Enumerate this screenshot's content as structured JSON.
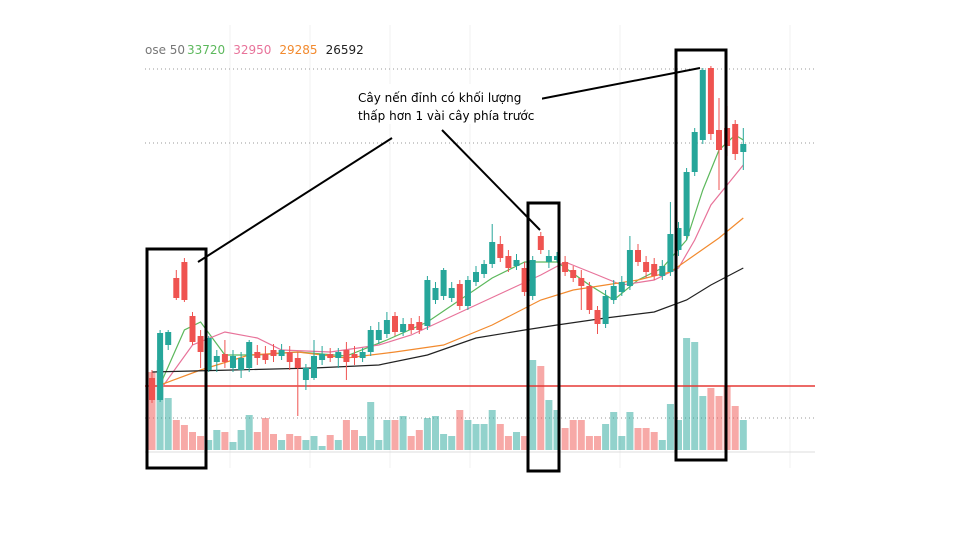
{
  "chart_data": {
    "type": "candlestick",
    "legend_label": "ose 50",
    "annotation": [
      "Cây nến đỉnh có khối lượng",
      "thấp hơn 1 vài cây phía trước"
    ],
    "up_color": "#26a69a",
    "down_color": "#ef5350",
    "ylim": [
      15000,
      40200
    ],
    "volume_lim": [
      0,
      120
    ],
    "open": [
      19320,
      18000,
      21300,
      25320,
      26280,
      23040,
      21840,
      19800,
      20280,
      20760,
      19920,
      19800,
      19920,
      20880,
      20760,
      21000,
      20640,
      20880,
      20520,
      19200,
      19320,
      20400,
      20760,
      20520,
      21000,
      20760,
      20520,
      20880,
      21600,
      21960,
      23040,
      22080,
      22560,
      22680,
      22440,
      24000,
      24240,
      24120,
      24960,
      23640,
      25080,
      25560,
      26160,
      27360,
      26640,
      26040,
      25920,
      24240,
      27840,
      26280,
      26400,
      26280,
      25800,
      25320,
      24840,
      23400,
      22560,
      24000,
      24480,
      24840,
      27000,
      26280,
      26160,
      25440,
      25680,
      27000,
      27840,
      31680,
      33600,
      37920,
      34200,
      34320,
      34560,
      32880
    ],
    "close": [
      18000,
      22020,
      22080,
      24120,
      24000,
      21480,
      20880,
      21720,
      20640,
      20280,
      20640,
      20520,
      21480,
      20520,
      20400,
      20640,
      21000,
      20280,
      19920,
      19920,
      20640,
      20760,
      20520,
      20880,
      20280,
      20520,
      20880,
      22200,
      22200,
      22800,
      22080,
      22560,
      22200,
      22200,
      25200,
      24720,
      25800,
      24720,
      23640,
      25200,
      25680,
      26160,
      27480,
      26520,
      25920,
      26400,
      24480,
      26400,
      27000,
      26640,
      26640,
      25680,
      25320,
      24840,
      23400,
      22560,
      24240,
      24840,
      25080,
      27000,
      26280,
      25680,
      25440,
      26040,
      27960,
      28320,
      31680,
      34080,
      37800,
      33960,
      33000,
      33240,
      32760,
      33360
    ],
    "high": [
      19800,
      22200,
      22200,
      25800,
      26520,
      23280,
      22200,
      21840,
      21000,
      21600,
      21000,
      20880,
      21600,
      21300,
      21240,
      21360,
      21360,
      21240,
      20880,
      20160,
      21600,
      21240,
      21120,
      21120,
      21480,
      21240,
      21120,
      22440,
      22680,
      23280,
      23280,
      22920,
      22920,
      23040,
      25440,
      25080,
      25920,
      25080,
      25200,
      25440,
      26040,
      26400,
      28560,
      27840,
      27000,
      26760,
      26280,
      26640,
      28080,
      27000,
      26880,
      26640,
      26040,
      25800,
      25080,
      23640,
      24600,
      25200,
      25440,
      27840,
      27360,
      26640,
      26520,
      26400,
      29880,
      28680,
      31920,
      34320,
      37920,
      38040,
      36120,
      35640,
      34800,
      34320
    ],
    "low": [
      17820,
      17880,
      21000,
      24000,
      23880,
      21300,
      19920,
      19680,
      19680,
      19920,
      19680,
      19320,
      19680,
      20100,
      20160,
      20280,
      20400,
      19800,
      17040,
      18600,
      19200,
      20100,
      20280,
      19920,
      19200,
      20100,
      20280,
      20640,
      21360,
      21720,
      21840,
      21840,
      21960,
      21960,
      22200,
      23760,
      24000,
      23880,
      23400,
      23400,
      24840,
      25320,
      25920,
      26280,
      25680,
      25800,
      24240,
      24000,
      26760,
      25920,
      26280,
      25440,
      25080,
      23400,
      23160,
      21960,
      22320,
      23760,
      24240,
      24600,
      26040,
      25320,
      25200,
      25200,
      25440,
      26640,
      27600,
      31440,
      33360,
      33600,
      30600,
      32640,
      32400,
      31800
    ],
    "volume": [
      78,
      90,
      52,
      30,
      25,
      18,
      14,
      10,
      20,
      18,
      8,
      20,
      35,
      18,
      32,
      16,
      10,
      16,
      14,
      10,
      14,
      4,
      15,
      10,
      30,
      20,
      14,
      48,
      10,
      30,
      30,
      34,
      14,
      20,
      32,
      34,
      16,
      14,
      40,
      30,
      26,
      26,
      40,
      26,
      14,
      18,
      14,
      90,
      84,
      50,
      40,
      22,
      30,
      30,
      14,
      14,
      26,
      38,
      14,
      38,
      22,
      22,
      18,
      10,
      46,
      30,
      112,
      108,
      54,
      62,
      54,
      64,
      44,
      30
    ],
    "series": [
      {
        "legend_value": 33720,
        "color": "#5cb85c",
        "x": [
          1,
          4,
          6,
          9,
          13,
          18,
          24,
          29,
          34,
          38,
          42,
          46,
          50,
          54,
          57,
          60,
          63,
          66,
          68,
          70,
          72,
          73
        ],
        "values": [
          18900,
          22200,
          22680,
          20700,
          20700,
          20880,
          20640,
          21600,
          22680,
          24000,
          25320,
          26280,
          26280,
          24900,
          24000,
          25200,
          25920,
          27600,
          30600,
          33000,
          33900,
          33600
        ]
      },
      {
        "legend_value": 32950,
        "color": "#e8739a",
        "x": [
          1,
          5,
          9,
          13,
          16,
          22,
          28,
          32,
          36,
          40,
          44,
          48,
          51,
          55,
          58,
          62,
          65,
          67,
          69,
          71,
          73
        ],
        "values": [
          18600,
          21300,
          22080,
          21720,
          21000,
          20880,
          21300,
          21900,
          22800,
          23700,
          24600,
          25500,
          26280,
          25500,
          24900,
          25200,
          25920,
          27600,
          29700,
          30900,
          32100
        ]
      },
      {
        "legend_value": 29285,
        "color": "#f28a2e",
        "x": [
          1,
          6,
          12,
          18,
          24,
          30,
          36,
          42,
          48,
          52,
          56,
          60,
          64,
          67,
          70,
          73
        ],
        "values": [
          18900,
          19800,
          20700,
          20880,
          20520,
          20880,
          21300,
          22500,
          24000,
          24600,
          24900,
          25200,
          25680,
          26700,
          27720,
          28920
        ]
      },
      {
        "legend_value": 26592,
        "color": "#222222",
        "x": [
          0,
          10,
          20,
          28,
          34,
          40,
          46,
          50,
          56,
          62,
          66,
          69,
          73
        ],
        "values": [
          19680,
          19800,
          19920,
          20100,
          20700,
          21720,
          22200,
          22500,
          22920,
          23280,
          24000,
          24900,
          25920
        ]
      }
    ],
    "reference_line": {
      "value": 18840,
      "color": "#e53935"
    },
    "levels": [
      37860,
      33420
    ],
    "volume_level": 32
  }
}
